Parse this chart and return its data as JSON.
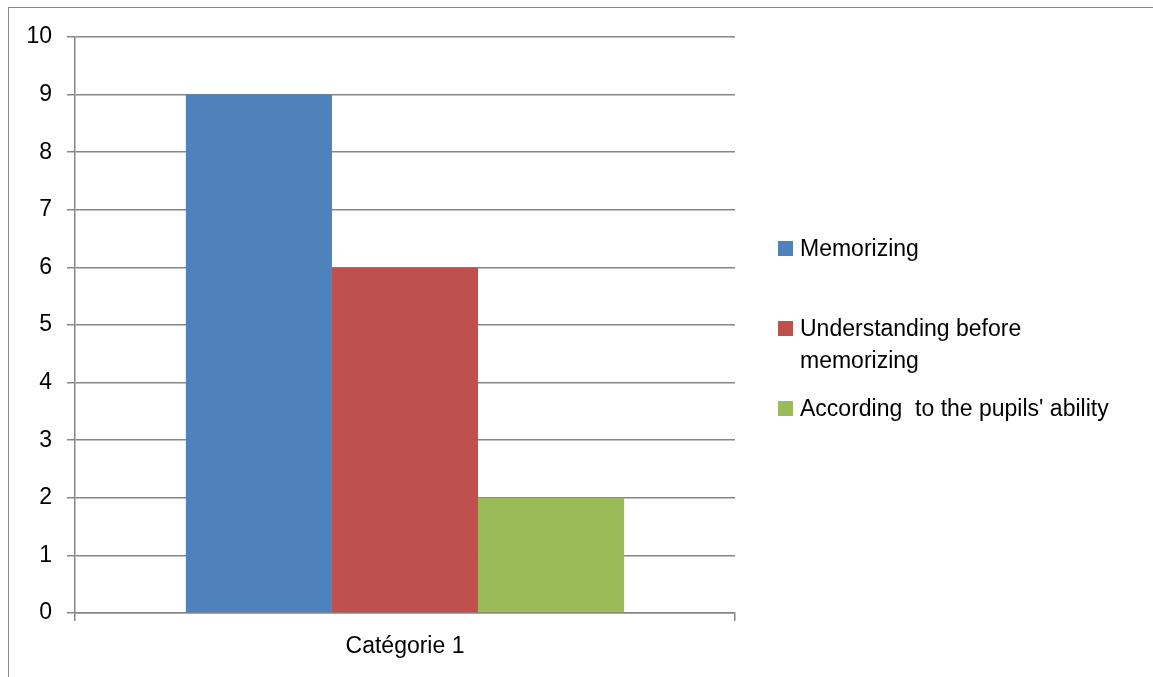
{
  "chart_data": {
    "type": "bar",
    "categories": [
      "Catégorie 1"
    ],
    "series": [
      {
        "name": "Memorizing",
        "color": "#4f81bd",
        "values": [
          9
        ]
      },
      {
        "name": "Understanding before memorizing",
        "color": "#c0504d",
        "values": [
          6
        ]
      },
      {
        "name": "According  to the pupils' ability",
        "color": "#9bbb59",
        "values": [
          2
        ]
      }
    ],
    "ylim": [
      0,
      10
    ],
    "yticks": [
      0,
      1,
      2,
      3,
      4,
      5,
      6,
      7,
      8,
      9,
      10
    ],
    "grid": "y",
    "legend": "right"
  }
}
